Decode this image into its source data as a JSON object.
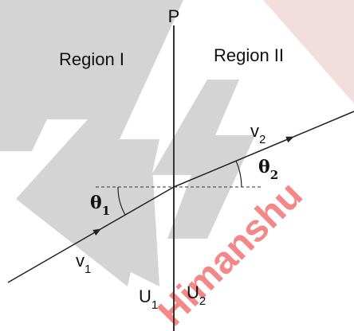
{
  "point_label": "P",
  "regions": [
    "Region I",
    "Region II"
  ],
  "velocities": [
    {
      "base": "v",
      "sub": "1"
    },
    {
      "base": "v",
      "sub": "2"
    }
  ],
  "angles": [
    {
      "base": "θ",
      "sub": "1"
    },
    {
      "base": "θ",
      "sub": "2"
    }
  ],
  "potentials": [
    {
      "base": "U",
      "sub": "1"
    },
    {
      "base": "U",
      "sub": "2"
    }
  ],
  "watermark": "Himanshu"
}
